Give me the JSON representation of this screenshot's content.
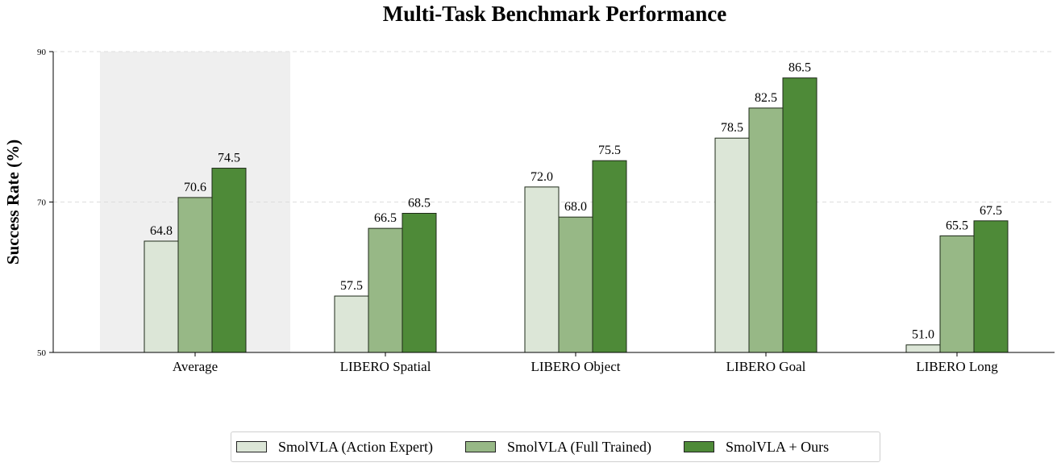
{
  "chart_data": {
    "type": "bar",
    "title": "Multi-Task Benchmark Performance",
    "xlabel": "",
    "ylabel": "Success Rate (%)",
    "ylim": [
      50,
      90
    ],
    "yticks": [
      50,
      70,
      90
    ],
    "grid": true,
    "highlighted_category": "Average",
    "categories": [
      "Average",
      "LIBERO Spatial",
      "LIBERO Object",
      "LIBERO Goal",
      "LIBERO Long"
    ],
    "series": [
      {
        "name": "SmolVLA (Action Expert)",
        "color": "#dce6d7",
        "values": [
          64.8,
          57.5,
          72.0,
          78.5,
          51.0
        ]
      },
      {
        "name": "SmolVLA (Full Trained)",
        "color": "#97b886",
        "values": [
          70.6,
          66.5,
          68.0,
          82.5,
          65.5
        ]
      },
      {
        "name": "SmolVLA + Ours",
        "color": "#4e8a38",
        "values": [
          74.5,
          68.5,
          75.5,
          86.5,
          67.5
        ]
      }
    ],
    "legend_position": "bottom-center"
  }
}
